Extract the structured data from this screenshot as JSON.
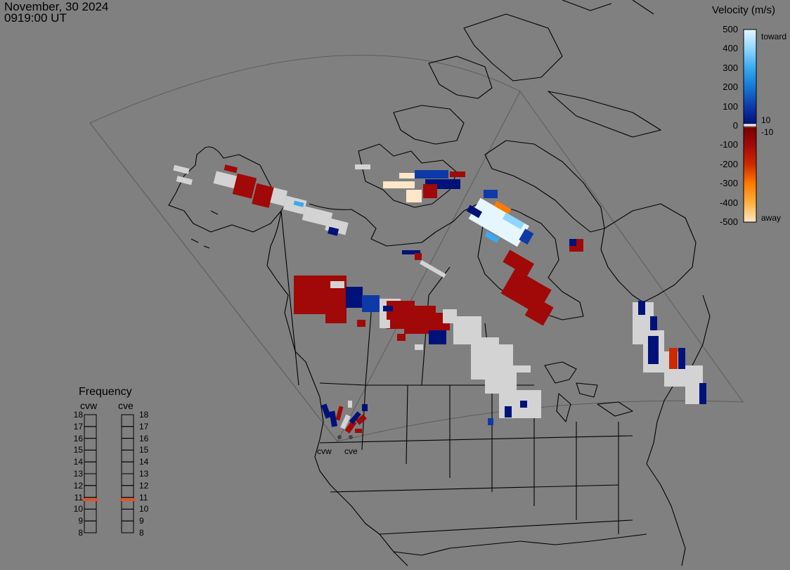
{
  "header": {
    "date": "November, 30 2024",
    "time": "0919:00 UT"
  },
  "colorbar": {
    "title": "Velocity (m/s)",
    "ticks": [
      "500",
      "400",
      "300",
      "200",
      "100",
      "0",
      "-100",
      "-200",
      "-300",
      "-400",
      "-500"
    ],
    "tick_values": [
      500,
      400,
      300,
      200,
      100,
      0,
      -100,
      -200,
      -300,
      -400,
      -500
    ],
    "side_labels": {
      "toward": "toward",
      "away": "away",
      "plus10": "10",
      "minus10": "-10"
    },
    "gradient": [
      {
        "v": 500,
        "color": "#e6f6ff"
      },
      {
        "v": 400,
        "color": "#8fd6ff"
      },
      {
        "v": 300,
        "color": "#3aa9f0"
      },
      {
        "v": 200,
        "color": "#1577d4"
      },
      {
        "v": 100,
        "color": "#0e3aa8"
      },
      {
        "v": 10,
        "color": "#00127a"
      },
      {
        "v": 0,
        "color": "#e8e8e8"
      },
      {
        "v": -10,
        "color": "#7a0000"
      },
      {
        "v": -100,
        "color": "#a30a0a"
      },
      {
        "v": -200,
        "color": "#cc2a00"
      },
      {
        "v": -300,
        "color": "#ff7a00"
      },
      {
        "v": -400,
        "color": "#ffb040"
      },
      {
        "v": -500,
        "color": "#ffe6c8"
      }
    ]
  },
  "frequency_panel": {
    "title": "Frequency",
    "radars": [
      "cvw",
      "cve"
    ],
    "scale": [
      "18",
      "17",
      "16",
      "15",
      "14",
      "13",
      "12",
      "11",
      "10",
      "9",
      "8"
    ],
    "scale_range": [
      8,
      18
    ],
    "values": {
      "cvw": 10.8,
      "cve": 10.8
    },
    "marker_color": "#e0522a"
  },
  "map": {
    "radar_site_labels": [
      "cvw",
      "cve"
    ],
    "colors": {
      "background": "#808080",
      "coastline": "#000000",
      "fov_outline": "#5a5a5a",
      "ground_scatter": "#d3d3d3"
    }
  }
}
